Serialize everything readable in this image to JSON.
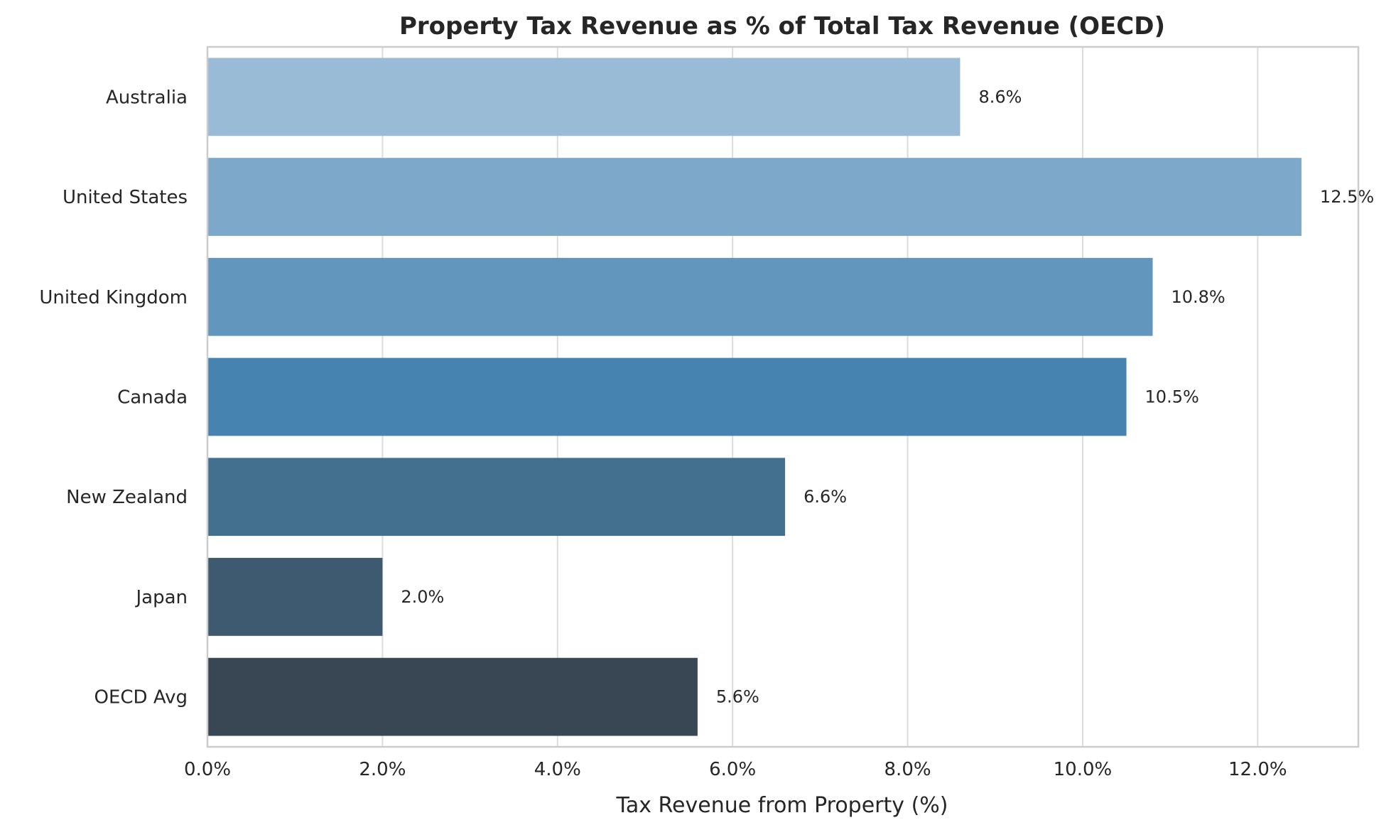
{
  "chart_data": {
    "type": "bar",
    "orientation": "horizontal",
    "title": "Property Tax Revenue as % of Total Tax Revenue (OECD)",
    "xlabel": "Tax Revenue from Property (%)",
    "ylabel": "",
    "categories": [
      "Australia",
      "United States",
      "United Kingdom",
      "Canada",
      "New Zealand",
      "Japan",
      "OECD Avg"
    ],
    "values": [
      8.6,
      12.5,
      10.8,
      10.5,
      6.6,
      2.0,
      5.6
    ],
    "value_labels": [
      "8.6%",
      "12.5%",
      "10.8%",
      "10.5%",
      "6.6%",
      "2.0%",
      "5.6%"
    ],
    "colors": [
      "#9abbd5",
      "#7ea8c9",
      "#6296bc",
      "#4783b0",
      "#44708f",
      "#3d5a70",
      "#394653"
    ],
    "xlim": [
      0,
      13.15
    ],
    "xticks": [
      0,
      2,
      4,
      6,
      8,
      10,
      12
    ],
    "xtick_labels": [
      "0.0%",
      "2.0%",
      "4.0%",
      "6.0%",
      "8.0%",
      "10.0%",
      "12.0%"
    ],
    "grid": "vertical",
    "legend": "none"
  }
}
